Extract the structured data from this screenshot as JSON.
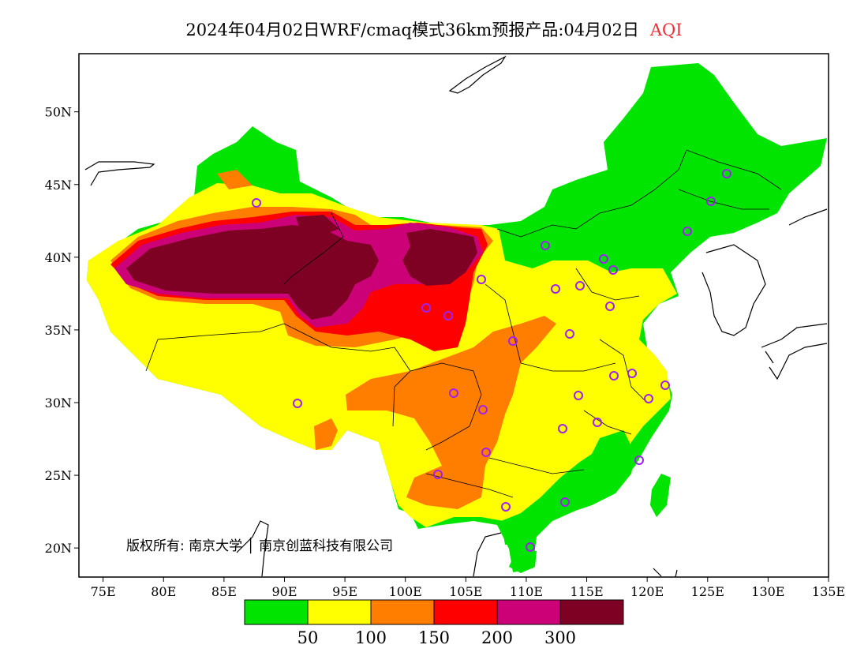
{
  "title": {
    "text": "2024年04月02日WRF/cmaq模式36km预报产品:04月02日",
    "variable": "AQI"
  },
  "map": {
    "lon_range": [
      73,
      135
    ],
    "lat_range": [
      18,
      54
    ],
    "lon_ticks": [
      "75E",
      "80E",
      "85E",
      "90E",
      "95E",
      "100E",
      "105E",
      "110E",
      "115E",
      "120E",
      "125E",
      "130E",
      "135E"
    ],
    "lat_ticks": [
      "20N",
      "25N",
      "30N",
      "35N",
      "40N",
      "45N",
      "50N"
    ],
    "copyright": "版权所有: 南京大学 │ 南京创蓝科技有限公司"
  },
  "legend": {
    "colors": [
      "#00e400",
      "#ffff00",
      "#ff7e00",
      "#ff0000",
      "#cc0077",
      "#7e0023"
    ],
    "labels": [
      "50",
      "100",
      "150",
      "200",
      "300"
    ]
  },
  "stations": {
    "marker": "circle",
    "color": "#a020f0"
  }
}
